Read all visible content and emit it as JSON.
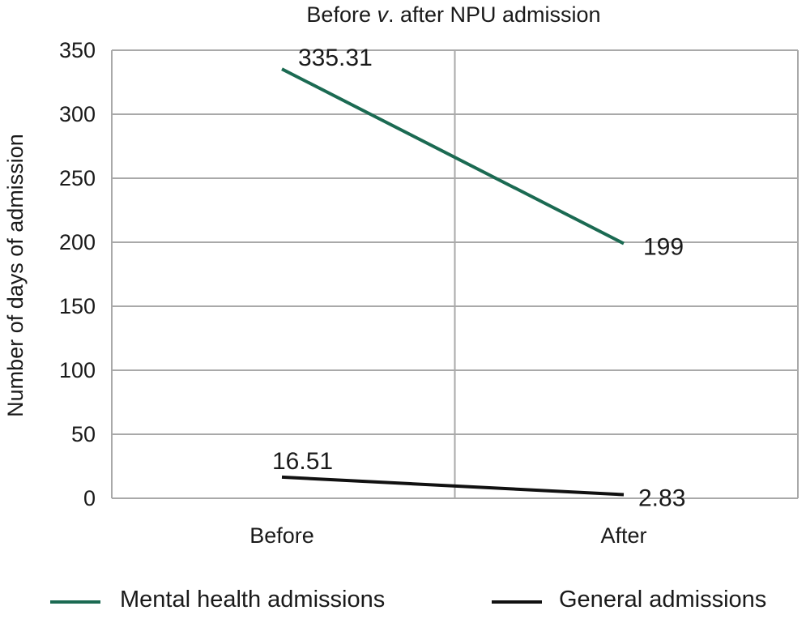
{
  "chart_data": {
    "type": "line",
    "title": {
      "before": "Before ",
      "italic": "v",
      "after": ". after NPU admission"
    },
    "xlabel": "",
    "ylabel": "Number of days of admission",
    "categories": [
      "Before",
      "After"
    ],
    "ylim": [
      0,
      350
    ],
    "yticks": [
      0,
      50,
      100,
      150,
      200,
      250,
      300,
      350
    ],
    "grid": true,
    "legend_position": "bottom",
    "series": [
      {
        "name": "Mental health admissions",
        "values": [
          335.31,
          199
        ],
        "labels": [
          "335.31",
          "199"
        ],
        "color": "#1b6a52"
      },
      {
        "name": "General admissions",
        "values": [
          16.51,
          2.83
        ],
        "labels": [
          "16.51",
          "2.83"
        ],
        "color": "#111111"
      }
    ]
  }
}
